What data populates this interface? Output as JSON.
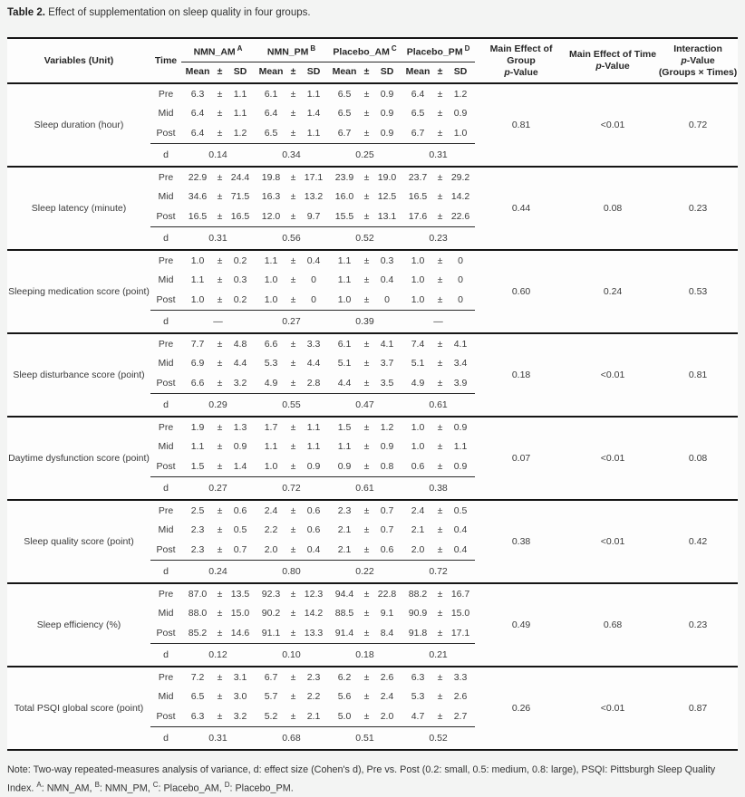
{
  "page": {
    "title_label": "Table 2.",
    "title_text": "Effect of supplementation on sleep quality in four groups."
  },
  "table": {
    "header": {
      "variables": "Variables (Unit)",
      "time": "Time",
      "groups": [
        {
          "name": "NMN_AM",
          "sup": "A"
        },
        {
          "name": "NMN_PM",
          "sup": "B"
        },
        {
          "name": "Placebo_AM",
          "sup": "C"
        },
        {
          "name": "Placebo_PM",
          "sup": "D"
        }
      ],
      "stat_mean": "Mean",
      "stat_pm": "±",
      "stat_sd": "SD",
      "p_group_line1": "Main Effect of Group",
      "p_time_line1": "Main Effect of Time",
      "p_int_line1": "Interaction",
      "p_int_line3": "(Groups × Times)",
      "p_italic": "p",
      "p_rest": "-Value"
    },
    "plus_minus": "±",
    "d_label": "d",
    "blocks": [
      {
        "variable": "Sleep duration (hour)",
        "times": [
          {
            "label": "Pre",
            "values": [
              [
                "6.3",
                "1.1"
              ],
              [
                "6.1",
                "1.1"
              ],
              [
                "6.5",
                "0.9"
              ],
              [
                "6.4",
                "1.2"
              ]
            ]
          },
          {
            "label": "Mid",
            "values": [
              [
                "6.4",
                "1.1"
              ],
              [
                "6.4",
                "1.4"
              ],
              [
                "6.5",
                "0.9"
              ],
              [
                "6.5",
                "0.9"
              ]
            ]
          },
          {
            "label": "Post",
            "values": [
              [
                "6.4",
                "1.2"
              ],
              [
                "6.5",
                "1.1"
              ],
              [
                "6.7",
                "0.9"
              ],
              [
                "6.7",
                "1.0"
              ]
            ]
          }
        ],
        "d": [
          "0.14",
          "0.34",
          "0.25",
          "0.31"
        ],
        "p_group": "0.81",
        "p_time": "<0.01",
        "p_interaction": "0.72"
      },
      {
        "variable": "Sleep latency (minute)",
        "times": [
          {
            "label": "Pre",
            "values": [
              [
                "22.9",
                "24.4"
              ],
              [
                "19.8",
                "17.1"
              ],
              [
                "23.9",
                "19.0"
              ],
              [
                "23.7",
                "29.2"
              ]
            ]
          },
          {
            "label": "Mid",
            "values": [
              [
                "34.6",
                "71.5"
              ],
              [
                "16.3",
                "13.2"
              ],
              [
                "16.0",
                "12.5"
              ],
              [
                "16.5",
                "14.2"
              ]
            ]
          },
          {
            "label": "Post",
            "values": [
              [
                "16.5",
                "16.5"
              ],
              [
                "12.0",
                "9.7"
              ],
              [
                "15.5",
                "13.1"
              ],
              [
                "17.6",
                "22.6"
              ]
            ]
          }
        ],
        "d": [
          "0.31",
          "0.56",
          "0.52",
          "0.23"
        ],
        "p_group": "0.44",
        "p_time": "0.08",
        "p_interaction": "0.23"
      },
      {
        "variable": "Sleeping medication score (point)",
        "times": [
          {
            "label": "Pre",
            "values": [
              [
                "1.0",
                "0.2"
              ],
              [
                "1.1",
                "0.4"
              ],
              [
                "1.1",
                "0.3"
              ],
              [
                "1.0",
                "0"
              ]
            ]
          },
          {
            "label": "Mid",
            "values": [
              [
                "1.1",
                "0.3"
              ],
              [
                "1.0",
                "0"
              ],
              [
                "1.1",
                "0.4"
              ],
              [
                "1.0",
                "0"
              ]
            ]
          },
          {
            "label": "Post",
            "values": [
              [
                "1.0",
                "0.2"
              ],
              [
                "1.0",
                "0"
              ],
              [
                "1.0",
                "0"
              ],
              [
                "1.0",
                "0"
              ]
            ]
          }
        ],
        "d": [
          "—",
          "0.27",
          "0.39",
          "—"
        ],
        "p_group": "0.60",
        "p_time": "0.24",
        "p_interaction": "0.53"
      },
      {
        "variable": "Sleep disturbance score (point)",
        "times": [
          {
            "label": "Pre",
            "values": [
              [
                "7.7",
                "4.8"
              ],
              [
                "6.6",
                "3.3"
              ],
              [
                "6.1",
                "4.1"
              ],
              [
                "7.4",
                "4.1"
              ]
            ]
          },
          {
            "label": "Mid",
            "values": [
              [
                "6.9",
                "4.4"
              ],
              [
                "5.3",
                "4.4"
              ],
              [
                "5.1",
                "3.7"
              ],
              [
                "5.1",
                "3.4"
              ]
            ]
          },
          {
            "label": "Post",
            "values": [
              [
                "6.6",
                "3.2"
              ],
              [
                "4.9",
                "2.8"
              ],
              [
                "4.4",
                "3.5"
              ],
              [
                "4.9",
                "3.9"
              ]
            ]
          }
        ],
        "d": [
          "0.29",
          "0.55",
          "0.47",
          "0.61"
        ],
        "p_group": "0.18",
        "p_time": "<0.01",
        "p_interaction": "0.81"
      },
      {
        "variable": "Daytime dysfunction score (point)",
        "times": [
          {
            "label": "Pre",
            "values": [
              [
                "1.9",
                "1.3"
              ],
              [
                "1.7",
                "1.1"
              ],
              [
                "1.5",
                "1.2"
              ],
              [
                "1.0",
                "0.9"
              ]
            ]
          },
          {
            "label": "Mid",
            "values": [
              [
                "1.1",
                "0.9"
              ],
              [
                "1.1",
                "1.1"
              ],
              [
                "1.1",
                "0.9"
              ],
              [
                "1.0",
                "1.1"
              ]
            ]
          },
          {
            "label": "Post",
            "values": [
              [
                "1.5",
                "1.4"
              ],
              [
                "1.0",
                "0.9"
              ],
              [
                "0.9",
                "0.8"
              ],
              [
                "0.6",
                "0.9"
              ]
            ]
          }
        ],
        "d": [
          "0.27",
          "0.72",
          "0.61",
          "0.38"
        ],
        "p_group": "0.07",
        "p_time": "<0.01",
        "p_interaction": "0.08"
      },
      {
        "variable": "Sleep quality score (point)",
        "times": [
          {
            "label": "Pre",
            "values": [
              [
                "2.5",
                "0.6"
              ],
              [
                "2.4",
                "0.6"
              ],
              [
                "2.3",
                "0.7"
              ],
              [
                "2.4",
                "0.5"
              ]
            ]
          },
          {
            "label": "Mid",
            "values": [
              [
                "2.3",
                "0.5"
              ],
              [
                "2.2",
                "0.6"
              ],
              [
                "2.1",
                "0.7"
              ],
              [
                "2.1",
                "0.4"
              ]
            ]
          },
          {
            "label": "Post",
            "values": [
              [
                "2.3",
                "0.7"
              ],
              [
                "2.0",
                "0.4"
              ],
              [
                "2.1",
                "0.6"
              ],
              [
                "2.0",
                "0.4"
              ]
            ]
          }
        ],
        "d": [
          "0.24",
          "0.80",
          "0.22",
          "0.72"
        ],
        "p_group": "0.38",
        "p_time": "<0.01",
        "p_interaction": "0.42"
      },
      {
        "variable": "Sleep efficiency (%)",
        "times": [
          {
            "label": "Pre",
            "values": [
              [
                "87.0",
                "13.5"
              ],
              [
                "92.3",
                "12.3"
              ],
              [
                "94.4",
                "22.8"
              ],
              [
                "88.2",
                "16.7"
              ]
            ]
          },
          {
            "label": "Mid",
            "values": [
              [
                "88.0",
                "15.0"
              ],
              [
                "90.2",
                "14.2"
              ],
              [
                "88.5",
                "9.1"
              ],
              [
                "90.9",
                "15.0"
              ]
            ]
          },
          {
            "label": "Post",
            "values": [
              [
                "85.2",
                "14.6"
              ],
              [
                "91.1",
                "13.3"
              ],
              [
                "91.4",
                "8.4"
              ],
              [
                "91.8",
                "17.1"
              ]
            ]
          }
        ],
        "d": [
          "0.12",
          "0.10",
          "0.18",
          "0.21"
        ],
        "p_group": "0.49",
        "p_time": "0.68",
        "p_interaction": "0.23"
      },
      {
        "variable": "Total PSQI global score (point)",
        "times": [
          {
            "label": "Pre",
            "values": [
              [
                "7.2",
                "3.1"
              ],
              [
                "6.7",
                "2.3"
              ],
              [
                "6.2",
                "2.6"
              ],
              [
                "6.3",
                "3.3"
              ]
            ]
          },
          {
            "label": "Mid",
            "values": [
              [
                "6.5",
                "3.0"
              ],
              [
                "5.7",
                "2.2"
              ],
              [
                "5.6",
                "2.4"
              ],
              [
                "5.3",
                "2.6"
              ]
            ]
          },
          {
            "label": "Post",
            "values": [
              [
                "6.3",
                "3.2"
              ],
              [
                "5.2",
                "2.1"
              ],
              [
                "5.0",
                "2.0"
              ],
              [
                "4.7",
                "2.7"
              ]
            ]
          }
        ],
        "d": [
          "0.31",
          "0.68",
          "0.51",
          "0.52"
        ],
        "p_group": "0.26",
        "p_time": "<0.01",
        "p_interaction": "0.87"
      }
    ]
  },
  "note": {
    "prefix": "Note: Two-way repeated-measures analysis of variance, d: effect size (Cohen's d), Pre vs. Post (0.2: small, 0.5: medium, 0.8: large), PSQI: Pittsburgh Sleep Quality Index.",
    "defs": [
      {
        "sup": "A",
        "text": ": NMN_AM,"
      },
      {
        "sup": "B",
        "text": ": NMN_PM,"
      },
      {
        "sup": "C",
        "text": ": Placebo_AM,"
      },
      {
        "sup": "D",
        "text": ": Placebo_PM."
      }
    ]
  }
}
